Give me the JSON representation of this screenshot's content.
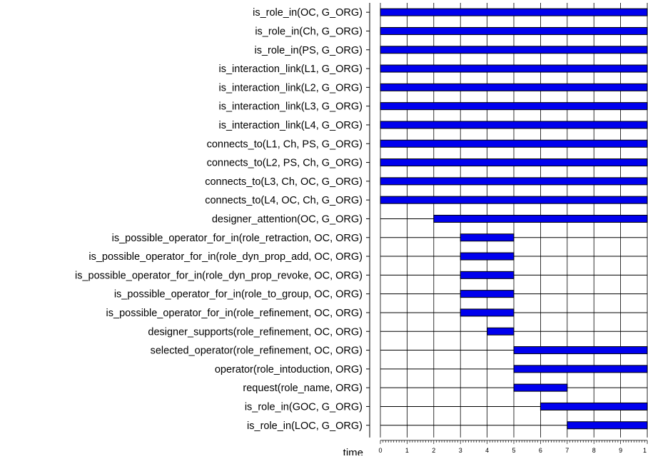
{
  "chart_data": {
    "type": "timeline",
    "xlabel": "time",
    "xlim": [
      0,
      10
    ],
    "x_ticks": [
      "0",
      "1",
      "2",
      "3",
      "4",
      "5",
      "6",
      "7",
      "8",
      "9",
      "1"
    ],
    "grid": true,
    "bar_color": "#0000ee",
    "rows": [
      {
        "label": "is_role_in(OC, G_ORG)",
        "intervals": [
          [
            0,
            10
          ]
        ]
      },
      {
        "label": "is_role_in(Ch, G_ORG)",
        "intervals": [
          [
            0,
            10
          ]
        ]
      },
      {
        "label": "is_role_in(PS, G_ORG)",
        "intervals": [
          [
            0,
            10
          ]
        ]
      },
      {
        "label": "is_interaction_link(L1, G_ORG)",
        "intervals": [
          [
            0,
            10
          ]
        ]
      },
      {
        "label": "is_interaction_link(L2, G_ORG)",
        "intervals": [
          [
            0,
            10
          ]
        ]
      },
      {
        "label": "is_interaction_link(L3, G_ORG)",
        "intervals": [
          [
            0,
            10
          ]
        ]
      },
      {
        "label": "is_interaction_link(L4, G_ORG)",
        "intervals": [
          [
            0,
            10
          ]
        ]
      },
      {
        "label": "connects_to(L1, Ch, PS, G_ORG)",
        "intervals": [
          [
            0,
            10
          ]
        ]
      },
      {
        "label": "connects_to(L2, PS, Ch, G_ORG)",
        "intervals": [
          [
            0,
            10
          ]
        ]
      },
      {
        "label": "connects_to(L3, Ch, OC, G_ORG)",
        "intervals": [
          [
            0,
            10
          ]
        ]
      },
      {
        "label": "connects_to(L4, OC, Ch, G_ORG)",
        "intervals": [
          [
            0,
            10
          ]
        ]
      },
      {
        "label": "designer_attention(OC, G_ORG)",
        "intervals": [
          [
            2,
            10
          ]
        ]
      },
      {
        "label": "is_possible_operator_for_in(role_retraction, OC, ORG)",
        "intervals": [
          [
            3,
            5
          ]
        ]
      },
      {
        "label": "is_possible_operator_for_in(role_dyn_prop_add, OC, ORG)",
        "intervals": [
          [
            3,
            5
          ]
        ]
      },
      {
        "label": "is_possible_operator_for_in(role_dyn_prop_revoke, OC, ORG)",
        "intervals": [
          [
            3,
            5
          ]
        ]
      },
      {
        "label": "is_possible_operator_for_in(role_to_group, OC, ORG)",
        "intervals": [
          [
            3,
            5
          ]
        ]
      },
      {
        "label": "is_possible_operator_for_in(role_refinement, OC, ORG)",
        "intervals": [
          [
            3,
            5
          ]
        ]
      },
      {
        "label": "designer_supports(role_refinement, OC, ORG)",
        "intervals": [
          [
            4,
            5
          ]
        ]
      },
      {
        "label": "selected_operator(role_refinement, OC, ORG)",
        "intervals": [
          [
            5,
            10
          ]
        ]
      },
      {
        "label": "operator(role_intoduction, ORG)",
        "intervals": [
          [
            5,
            10
          ]
        ]
      },
      {
        "label": "request(role_name, ORG)",
        "intervals": [
          [
            5,
            7
          ]
        ]
      },
      {
        "label": "is_role_in(GOC, G_ORG)",
        "intervals": [
          [
            6,
            10
          ]
        ]
      },
      {
        "label": "is_role_in(LOC, G_ORG)",
        "intervals": [
          [
            7,
            10
          ]
        ]
      }
    ]
  }
}
